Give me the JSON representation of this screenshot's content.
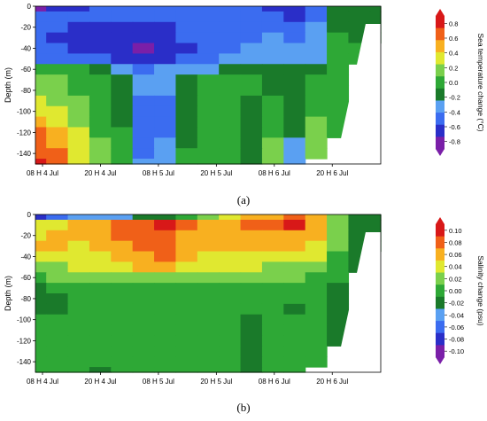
{
  "chart_data": [
    {
      "type": "heatmap",
      "panel": "(a)",
      "ylabel": "Depth (m)",
      "colorbar_label": "Sea temperature change (°C)",
      "xticks": [
        "08 H 4 Jul",
        "20 H 4 Jul",
        "08 H 5 Jul",
        "20 H 5 Jul",
        "08 H 6 Jul",
        "20 H 6 Jul"
      ],
      "yticks": [
        "0",
        "-20",
        "-40",
        "-60",
        "-80",
        "-100",
        "-120",
        "-140"
      ],
      "ylim": [
        -150,
        0
      ],
      "colorbar_ticks": [
        "0.8",
        "0.6",
        "0.4",
        "0.2",
        "0.0",
        "-0.2",
        "-0.4",
        "-0.6",
        "-0.8"
      ],
      "clim": [
        -0.8,
        0.8
      ],
      "colors": [
        "#7a1fa8",
        "#2a2ec8",
        "#3b6cf0",
        "#5aa0f2",
        "#1a7a2a",
        "#2ea836",
        "#7ad04c",
        "#e0e830",
        "#f8b020",
        "#f06018",
        "#d81818"
      ],
      "x_hours": [
        0,
        12,
        24,
        36,
        48,
        60,
        72
      ],
      "depths": [
        0,
        -10,
        -20,
        -30,
        -40,
        -50,
        -60,
        -70,
        -80,
        -90,
        -100,
        -110,
        -120,
        -130,
        -140,
        -150
      ],
      "rows": [
        [
          -0.7,
          -0.6,
          -0.6,
          -0.5,
          -0.45,
          -0.45,
          -0.45,
          -0.4,
          -0.4,
          -0.4,
          -0.45,
          -0.55,
          -0.65,
          -0.45,
          -0.1,
          -0.1,
          -0.1
        ],
        [
          -0.5,
          -0.5,
          -0.5,
          -0.5,
          -0.5,
          -0.5,
          -0.5,
          -0.45,
          -0.45,
          -0.4,
          -0.4,
          -0.45,
          -0.55,
          -0.4,
          -0.1,
          -0.1,
          -0.1
        ],
        [
          -0.5,
          -0.5,
          -0.55,
          -0.55,
          -0.6,
          -0.6,
          -0.55,
          -0.5,
          -0.45,
          -0.4,
          -0.4,
          -0.4,
          -0.45,
          -0.35,
          -0.1,
          -0.1,
          -0.1
        ],
        [
          -0.5,
          -0.55,
          -0.6,
          -0.6,
          -0.65,
          -0.65,
          -0.6,
          -0.5,
          -0.45,
          -0.4,
          -0.4,
          -0.35,
          -0.4,
          -0.3,
          -0.05,
          -0.1,
          -0.1
        ],
        [
          -0.5,
          -0.5,
          -0.55,
          -0.6,
          -0.65,
          -0.7,
          -0.65,
          -0.55,
          -0.45,
          -0.4,
          -0.35,
          -0.3,
          -0.35,
          -0.3,
          -0.05,
          -0.05,
          null
        ],
        [
          -0.45,
          -0.45,
          -0.5,
          -0.5,
          -0.55,
          -0.6,
          -0.55,
          -0.5,
          -0.4,
          -0.35,
          -0.3,
          -0.25,
          -0.3,
          -0.25,
          0.0,
          0.0,
          null
        ],
        [
          0.05,
          0.0,
          -0.05,
          -0.1,
          -0.3,
          -0.4,
          -0.35,
          -0.3,
          -0.25,
          -0.15,
          -0.1,
          -0.15,
          -0.2,
          -0.1,
          -0.05,
          null,
          null
        ],
        [
          0.1,
          0.1,
          0.0,
          -0.05,
          -0.2,
          -0.35,
          -0.3,
          -0.2,
          -0.05,
          -0.05,
          -0.05,
          -0.1,
          -0.15,
          -0.05,
          -0.05,
          null,
          null
        ],
        [
          0.15,
          0.12,
          0.05,
          0.0,
          -0.15,
          -0.35,
          -0.35,
          -0.15,
          -0.05,
          -0.05,
          -0.05,
          -0.1,
          -0.15,
          -0.05,
          -0.05,
          null,
          null
        ],
        [
          0.25,
          0.2,
          0.1,
          0.0,
          -0.15,
          -0.4,
          -0.4,
          -0.15,
          -0.05,
          -0.05,
          -0.1,
          -0.05,
          -0.15,
          0.0,
          -0.05,
          null,
          null
        ],
        [
          0.35,
          0.25,
          0.15,
          0.05,
          -0.1,
          -0.5,
          -0.45,
          -0.15,
          -0.05,
          -0.05,
          -0.1,
          0.0,
          -0.2,
          0.05,
          -0.05,
          null,
          null
        ],
        [
          0.45,
          0.35,
          0.2,
          0.05,
          -0.1,
          -0.45,
          -0.45,
          -0.15,
          -0.05,
          -0.05,
          -0.1,
          0.05,
          -0.2,
          0.1,
          -0.05,
          null,
          null
        ],
        [
          0.55,
          0.45,
          0.25,
          0.05,
          -0.05,
          -0.45,
          -0.4,
          -0.1,
          -0.05,
          -0.05,
          -0.1,
          0.05,
          -0.2,
          0.15,
          -0.05,
          null,
          null
        ],
        [
          0.6,
          0.5,
          0.3,
          0.1,
          -0.05,
          -0.45,
          -0.35,
          -0.1,
          -0.05,
          -0.05,
          -0.1,
          0.1,
          -0.25,
          0.2,
          null,
          null,
          null
        ],
        [
          0.65,
          0.55,
          0.35,
          0.1,
          0.0,
          -0.4,
          -0.35,
          -0.05,
          -0.05,
          -0.05,
          -0.1,
          0.1,
          -0.25,
          0.2,
          null,
          null,
          null
        ],
        [
          0.7,
          0.55,
          0.35,
          0.1,
          0.0,
          -0.35,
          -0.35,
          -0.05,
          -0.05,
          -0.05,
          -0.1,
          0.1,
          -0.25,
          null,
          null,
          null,
          null
        ]
      ]
    },
    {
      "type": "heatmap",
      "panel": "(b)",
      "ylabel": "Depth (m)",
      "colorbar_label": "Salinity change (psu)",
      "xticks": [
        "08 H 4 Jul",
        "20 H 4 Jul",
        "08 H 5 Jul",
        "20 H 5 Jul",
        "08 H 6 Jul",
        "20 H 6 Jul"
      ],
      "yticks": [
        "0",
        "-20",
        "-40",
        "-60",
        "-80",
        "-100",
        "-120",
        "-140"
      ],
      "ylim": [
        -150,
        0
      ],
      "colorbar_ticks": [
        "0.10",
        "0.08",
        "0.06",
        "0.04",
        "0.02",
        "0.00",
        "-0.02",
        "-0.04",
        "-0.06",
        "-0.08",
        "-0.10"
      ],
      "clim": [
        -0.1,
        0.1
      ],
      "colors": [
        "#7a1fa8",
        "#2a2ec8",
        "#3b6cf0",
        "#5aa0f2",
        "#1a7a2a",
        "#2ea836",
        "#7ad04c",
        "#e0e830",
        "#f8b020",
        "#f06018",
        "#d81818"
      ],
      "x_hours": [
        0,
        12,
        24,
        36,
        48,
        60,
        72
      ],
      "depths": [
        0,
        -10,
        -20,
        -30,
        -40,
        -50,
        -60,
        -70,
        -80,
        -90,
        -100,
        -110,
        -120,
        -130,
        -140,
        -150
      ],
      "rows": [
        [
          -0.08,
          -0.06,
          -0.04,
          -0.04,
          -0.03,
          -0.02,
          -0.01,
          0.0,
          0.02,
          0.03,
          0.05,
          0.06,
          0.07,
          0.05,
          0.01,
          -0.01,
          -0.01
        ],
        [
          0.03,
          0.04,
          0.05,
          0.06,
          0.07,
          0.08,
          0.09,
          0.07,
          0.06,
          0.06,
          0.07,
          0.08,
          0.09,
          0.06,
          0.01,
          -0.01,
          -0.01
        ],
        [
          0.04,
          0.05,
          0.05,
          0.06,
          0.07,
          0.07,
          0.07,
          0.06,
          0.06,
          0.06,
          0.06,
          0.06,
          0.06,
          0.05,
          0.01,
          -0.01,
          -0.01
        ],
        [
          0.05,
          0.05,
          0.04,
          0.05,
          0.06,
          0.07,
          0.075,
          0.06,
          0.05,
          0.05,
          0.05,
          0.05,
          0.05,
          0.04,
          0.01,
          -0.01,
          -0.01
        ],
        [
          0.04,
          0.04,
          0.04,
          0.04,
          0.05,
          0.06,
          0.065,
          0.055,
          0.045,
          0.04,
          0.04,
          0.04,
          0.03,
          0.03,
          0.0,
          -0.01,
          null
        ],
        [
          0.02,
          0.025,
          0.03,
          0.03,
          0.04,
          0.05,
          0.05,
          0.04,
          0.03,
          0.03,
          0.03,
          0.02,
          0.02,
          0.015,
          0.0,
          -0.01,
          null
        ],
        [
          0.005,
          0.01,
          0.01,
          0.01,
          0.015,
          0.02,
          0.02,
          0.015,
          0.01,
          0.01,
          0.01,
          0.01,
          0.01,
          0.005,
          0.0,
          null,
          null
        ],
        [
          -0.01,
          0.0,
          0.0,
          0.0,
          0.0,
          0.005,
          0.005,
          0.0,
          0.0,
          0.0,
          0.0,
          0.0,
          0.0,
          0.0,
          -0.01,
          null,
          null
        ],
        [
          -0.012,
          -0.012,
          0.0,
          0.0,
          0.0,
          0.0,
          0.0,
          0.0,
          0.0,
          0.0,
          0.0,
          0.0,
          0.0,
          0.0,
          -0.01,
          null,
          null
        ],
        [
          -0.01,
          -0.012,
          -0.005,
          0.0,
          0.0,
          0.0,
          0.0,
          0.0,
          0.0,
          0.0,
          0.0,
          0.0,
          -0.012,
          0.0,
          -0.01,
          null,
          null
        ],
        [
          0.0,
          0.0,
          0.0,
          0.0,
          0.0,
          0.0,
          0.0,
          0.0,
          0.0,
          0.0,
          -0.01,
          0.0,
          0.0,
          0.0,
          -0.01,
          null,
          null
        ],
        [
          0.0,
          0.0,
          0.0,
          0.0,
          0.0,
          0.0,
          0.0,
          0.0,
          0.0,
          -0.005,
          -0.012,
          0.0,
          0.0,
          0.0,
          -0.01,
          null,
          null
        ],
        [
          0.0,
          0.0,
          0.0,
          0.0,
          0.0,
          0.0,
          0.0,
          0.0,
          0.0,
          -0.005,
          -0.012,
          0.0,
          0.0,
          0.0,
          -0.01,
          null,
          null
        ],
        [
          0.0,
          0.0,
          0.0,
          0.0,
          0.0,
          0.0,
          0.0,
          0.0,
          0.0,
          0.0,
          -0.012,
          0.0,
          0.0,
          0.0,
          null,
          null,
          null
        ],
        [
          0.0,
          0.0,
          0.0,
          0.0,
          0.0,
          0.0,
          0.0,
          0.0,
          0.0,
          0.0,
          -0.012,
          0.0,
          0.0,
          0.0,
          null,
          null,
          null
        ],
        [
          0.0,
          0.0,
          0.0,
          -0.01,
          0.0,
          0.0,
          0.0,
          0.0,
          0.0,
          0.0,
          -0.012,
          0.0,
          0.0,
          null,
          null,
          null,
          null
        ]
      ]
    }
  ],
  "captions": {
    "a": "(a)",
    "b": "(b)"
  }
}
